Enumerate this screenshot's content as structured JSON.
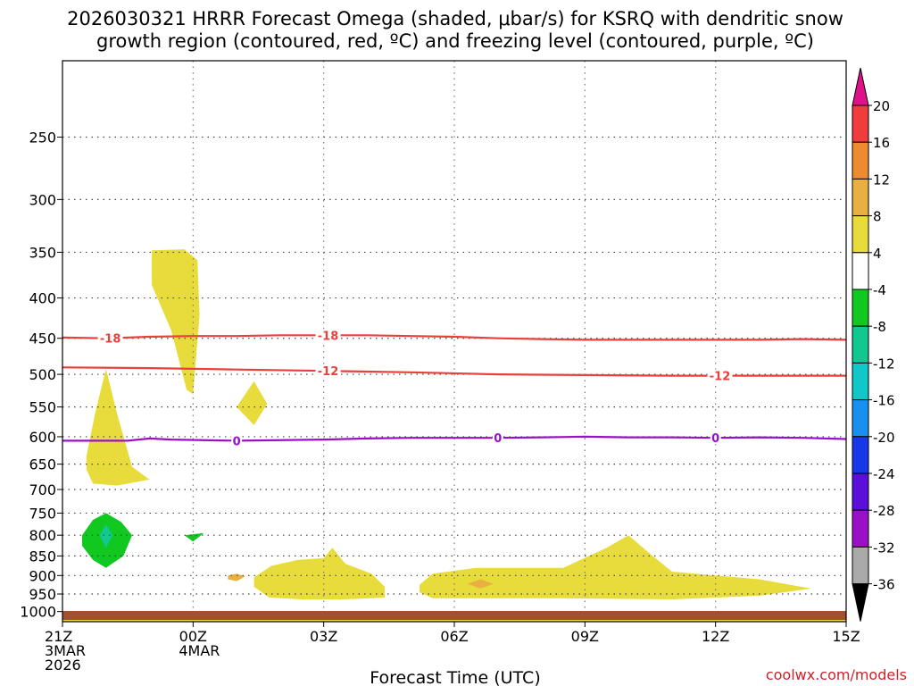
{
  "title": {
    "line1": "2026030321 HRRR Forecast Omega (shaded, μbar/s) for KSRQ with dendritic snow",
    "line2": "growth region (contoured, red, ºC) and freezing level (contoured, purple, ºC)"
  },
  "xlabel": "Forecast Time (UTC)",
  "credit": "coolwx.com/models",
  "colors": {
    "dgz": "#e8403a",
    "freezing": "#9a10c8",
    "ground": "#a0522d",
    "credit": "#d0202a"
  },
  "chart_data": {
    "type": "heatmap",
    "x_axis": {
      "unit": "hours",
      "range": [
        0,
        18
      ],
      "ticks": [
        {
          "hour": 0,
          "lines": [
            "21Z",
            "3MAR",
            "2026"
          ]
        },
        {
          "hour": 3,
          "lines": [
            "00Z",
            "4MAR"
          ]
        },
        {
          "hour": 6,
          "lines": [
            "03Z"
          ]
        },
        {
          "hour": 9,
          "lines": [
            "06Z"
          ]
        },
        {
          "hour": 12,
          "lines": [
            "09Z"
          ]
        },
        {
          "hour": 15,
          "lines": [
            "12Z"
          ]
        },
        {
          "hour": 18,
          "lines": [
            "15Z"
          ]
        }
      ]
    },
    "y_axis": {
      "unit": "hPa",
      "scale": "log",
      "inverted": true,
      "range": [
        1030,
        200
      ],
      "ticks": [
        250,
        300,
        350,
        400,
        450,
        500,
        550,
        600,
        650,
        700,
        750,
        800,
        850,
        900,
        950,
        1000
      ]
    },
    "grid": true,
    "colorbar": {
      "labels": [
        "20",
        "16",
        "12",
        "8",
        "4",
        "-4",
        "-8",
        "-12",
        "-16",
        "-20",
        "-24",
        "-28",
        "-32",
        "-36"
      ],
      "bins": [
        {
          "lo": 16,
          "hi": 20,
          "color": "#f03c3c"
        },
        {
          "lo": 12,
          "hi": 16,
          "color": "#ee8a30"
        },
        {
          "lo": 8,
          "hi": 12,
          "color": "#e8b040"
        },
        {
          "lo": 4,
          "hi": 8,
          "color": "#e8dc3c"
        },
        {
          "lo": -4,
          "hi": 4,
          "color": "#ffffff"
        },
        {
          "lo": -8,
          "hi": -4,
          "color": "#10c820"
        },
        {
          "lo": -12,
          "hi": -8,
          "color": "#10c890"
        },
        {
          "lo": -16,
          "hi": -12,
          "color": "#10c8c8"
        },
        {
          "lo": -20,
          "hi": -16,
          "color": "#1890f0"
        },
        {
          "lo": -24,
          "hi": -20,
          "color": "#1838e8"
        },
        {
          "lo": -28,
          "hi": -24,
          "color": "#5a10d8"
        },
        {
          "lo": -32,
          "hi": -28,
          "color": "#9a10c8"
        },
        {
          "lo": -36,
          "hi": -32,
          "color": "#aaaaaa"
        }
      ],
      "top_color": "#e0108a",
      "bottom_color": "#000000"
    },
    "regions": [
      {
        "name": "omega-area-1",
        "color": "#e8dc3c",
        "points": [
          [
            0.55,
            1020
          ],
          [
            1.5,
            1010
          ],
          [
            4.5,
            1005
          ],
          [
            6.5,
            1008
          ],
          [
            9.5,
            1006
          ],
          [
            12.5,
            1008
          ],
          [
            15.5,
            1005
          ],
          [
            18,
            1003
          ],
          [
            18,
            1030
          ],
          [
            0,
            1030
          ],
          [
            0,
            1020
          ]
        ]
      },
      {
        "name": "omega-area-2",
        "color": "#e8dc3c",
        "points": [
          [
            0.55,
            635
          ],
          [
            0.75,
            560
          ],
          [
            1.0,
            492
          ],
          [
            1.25,
            560
          ],
          [
            1.6,
            655
          ],
          [
            2.0,
            680
          ],
          [
            1.25,
            692
          ],
          [
            0.7,
            688
          ],
          [
            0.55,
            660
          ]
        ]
      },
      {
        "name": "omega-area-3",
        "color": "#e8dc3c",
        "points": [
          [
            2.05,
            348
          ],
          [
            2.8,
            347
          ],
          [
            3.1,
            358
          ],
          [
            3.15,
            420
          ],
          [
            3.0,
            530
          ],
          [
            2.85,
            523
          ],
          [
            2.5,
            440
          ],
          [
            2.05,
            385
          ]
        ]
      },
      {
        "name": "omega-area-4",
        "color": "#e8dc3c",
        "points": [
          [
            4.0,
            550
          ],
          [
            4.4,
            510
          ],
          [
            4.7,
            545
          ],
          [
            4.4,
            580
          ]
        ]
      },
      {
        "name": "omega-area-5",
        "color": "#e8dc3c",
        "points": [
          [
            4.4,
            905
          ],
          [
            4.8,
            875
          ],
          [
            5.4,
            860
          ],
          [
            6.0,
            855
          ],
          [
            6.2,
            830
          ],
          [
            6.5,
            870
          ],
          [
            7.1,
            895
          ],
          [
            7.4,
            930
          ],
          [
            7.4,
            960
          ],
          [
            6.5,
            965
          ],
          [
            5.5,
            965
          ],
          [
            4.75,
            960
          ],
          [
            4.4,
            930
          ]
        ]
      },
      {
        "name": "omega-area-6",
        "color": "#e8b040",
        "points": [
          [
            3.8,
            900
          ],
          [
            4.0,
            895
          ],
          [
            4.2,
            902
          ],
          [
            4.0,
            915
          ],
          [
            3.8,
            910
          ]
        ]
      },
      {
        "name": "omega-area-7",
        "color": "#e8dc3c",
        "points": [
          [
            8.2,
            925
          ],
          [
            8.5,
            895
          ],
          [
            9.5,
            880
          ],
          [
            11.5,
            880
          ],
          [
            12.5,
            830
          ],
          [
            13.0,
            800
          ],
          [
            13.5,
            845
          ],
          [
            14.0,
            890
          ],
          [
            16.0,
            910
          ],
          [
            17.2,
            935
          ],
          [
            16.0,
            955
          ],
          [
            14.0,
            965
          ],
          [
            11.5,
            962
          ],
          [
            8.5,
            962
          ],
          [
            8.2,
            945
          ]
        ]
      },
      {
        "name": "omega-area-8",
        "color": "#e8b040",
        "points": [
          [
            9.3,
            922
          ],
          [
            9.6,
            910
          ],
          [
            9.9,
            922
          ],
          [
            9.6,
            935
          ]
        ]
      },
      {
        "name": "omega-area-9",
        "color": "#10c820",
        "points": [
          [
            0.45,
            800
          ],
          [
            0.7,
            765
          ],
          [
            1.0,
            750
          ],
          [
            1.35,
            770
          ],
          [
            1.6,
            800
          ],
          [
            1.4,
            850
          ],
          [
            1.0,
            880
          ],
          [
            0.7,
            860
          ],
          [
            0.45,
            825
          ]
        ]
      },
      {
        "name": "omega-area-10",
        "color": "#10c890",
        "points": [
          [
            0.85,
            800
          ],
          [
            1.0,
            775
          ],
          [
            1.15,
            800
          ],
          [
            1.0,
            830
          ]
        ]
      },
      {
        "name": "omega-area-11",
        "color": "#10c820",
        "points": [
          [
            2.8,
            800
          ],
          [
            3.25,
            795
          ],
          [
            3.0,
            815
          ]
        ]
      }
    ],
    "contours": [
      {
        "name": "dgz-contour-minus18",
        "label": "-18",
        "color": "#e8403a",
        "points": [
          [
            0,
            449
          ],
          [
            1,
            450
          ],
          [
            2,
            448
          ],
          [
            3,
            447
          ],
          [
            4,
            447
          ],
          [
            5,
            446
          ],
          [
            6,
            446
          ],
          [
            7,
            446
          ],
          [
            8,
            447
          ],
          [
            9,
            448
          ],
          [
            10,
            450
          ],
          [
            11,
            451
          ],
          [
            12,
            452
          ],
          [
            13,
            452
          ],
          [
            14,
            452
          ],
          [
            15,
            452
          ],
          [
            16,
            452
          ],
          [
            17,
            451
          ],
          [
            18,
            452
          ]
        ],
        "label_at": [
          [
            1.1,
            450
          ],
          [
            6.1,
            446
          ]
        ]
      },
      {
        "name": "dgz-contour-minus12",
        "label": "-12",
        "color": "#e8403a",
        "points": [
          [
            0,
            490
          ],
          [
            2,
            491
          ],
          [
            4,
            493
          ],
          [
            6,
            495
          ],
          [
            8,
            497
          ],
          [
            10,
            500
          ],
          [
            12,
            501
          ],
          [
            14,
            502
          ],
          [
            16,
            502
          ],
          [
            18,
            502
          ]
        ],
        "label_at": [
          [
            6.1,
            495
          ],
          [
            15.1,
            502
          ]
        ]
      },
      {
        "name": "freezing-level-0",
        "label": "0",
        "color": "#9a10c8",
        "points": [
          [
            0,
            607
          ],
          [
            1.5,
            607
          ],
          [
            2,
            603
          ],
          [
            2.5,
            605
          ],
          [
            4,
            607
          ],
          [
            6,
            605
          ],
          [
            7,
            603
          ],
          [
            8,
            602
          ],
          [
            9,
            602
          ],
          [
            10,
            602
          ],
          [
            11,
            601
          ],
          [
            12,
            600
          ],
          [
            13,
            601
          ],
          [
            14,
            601
          ],
          [
            15,
            602
          ],
          [
            16,
            601
          ],
          [
            17,
            602
          ],
          [
            18,
            604
          ]
        ],
        "label_at": [
          [
            4.0,
            607
          ],
          [
            10.0,
            602
          ],
          [
            15.0,
            602
          ]
        ]
      }
    ]
  }
}
